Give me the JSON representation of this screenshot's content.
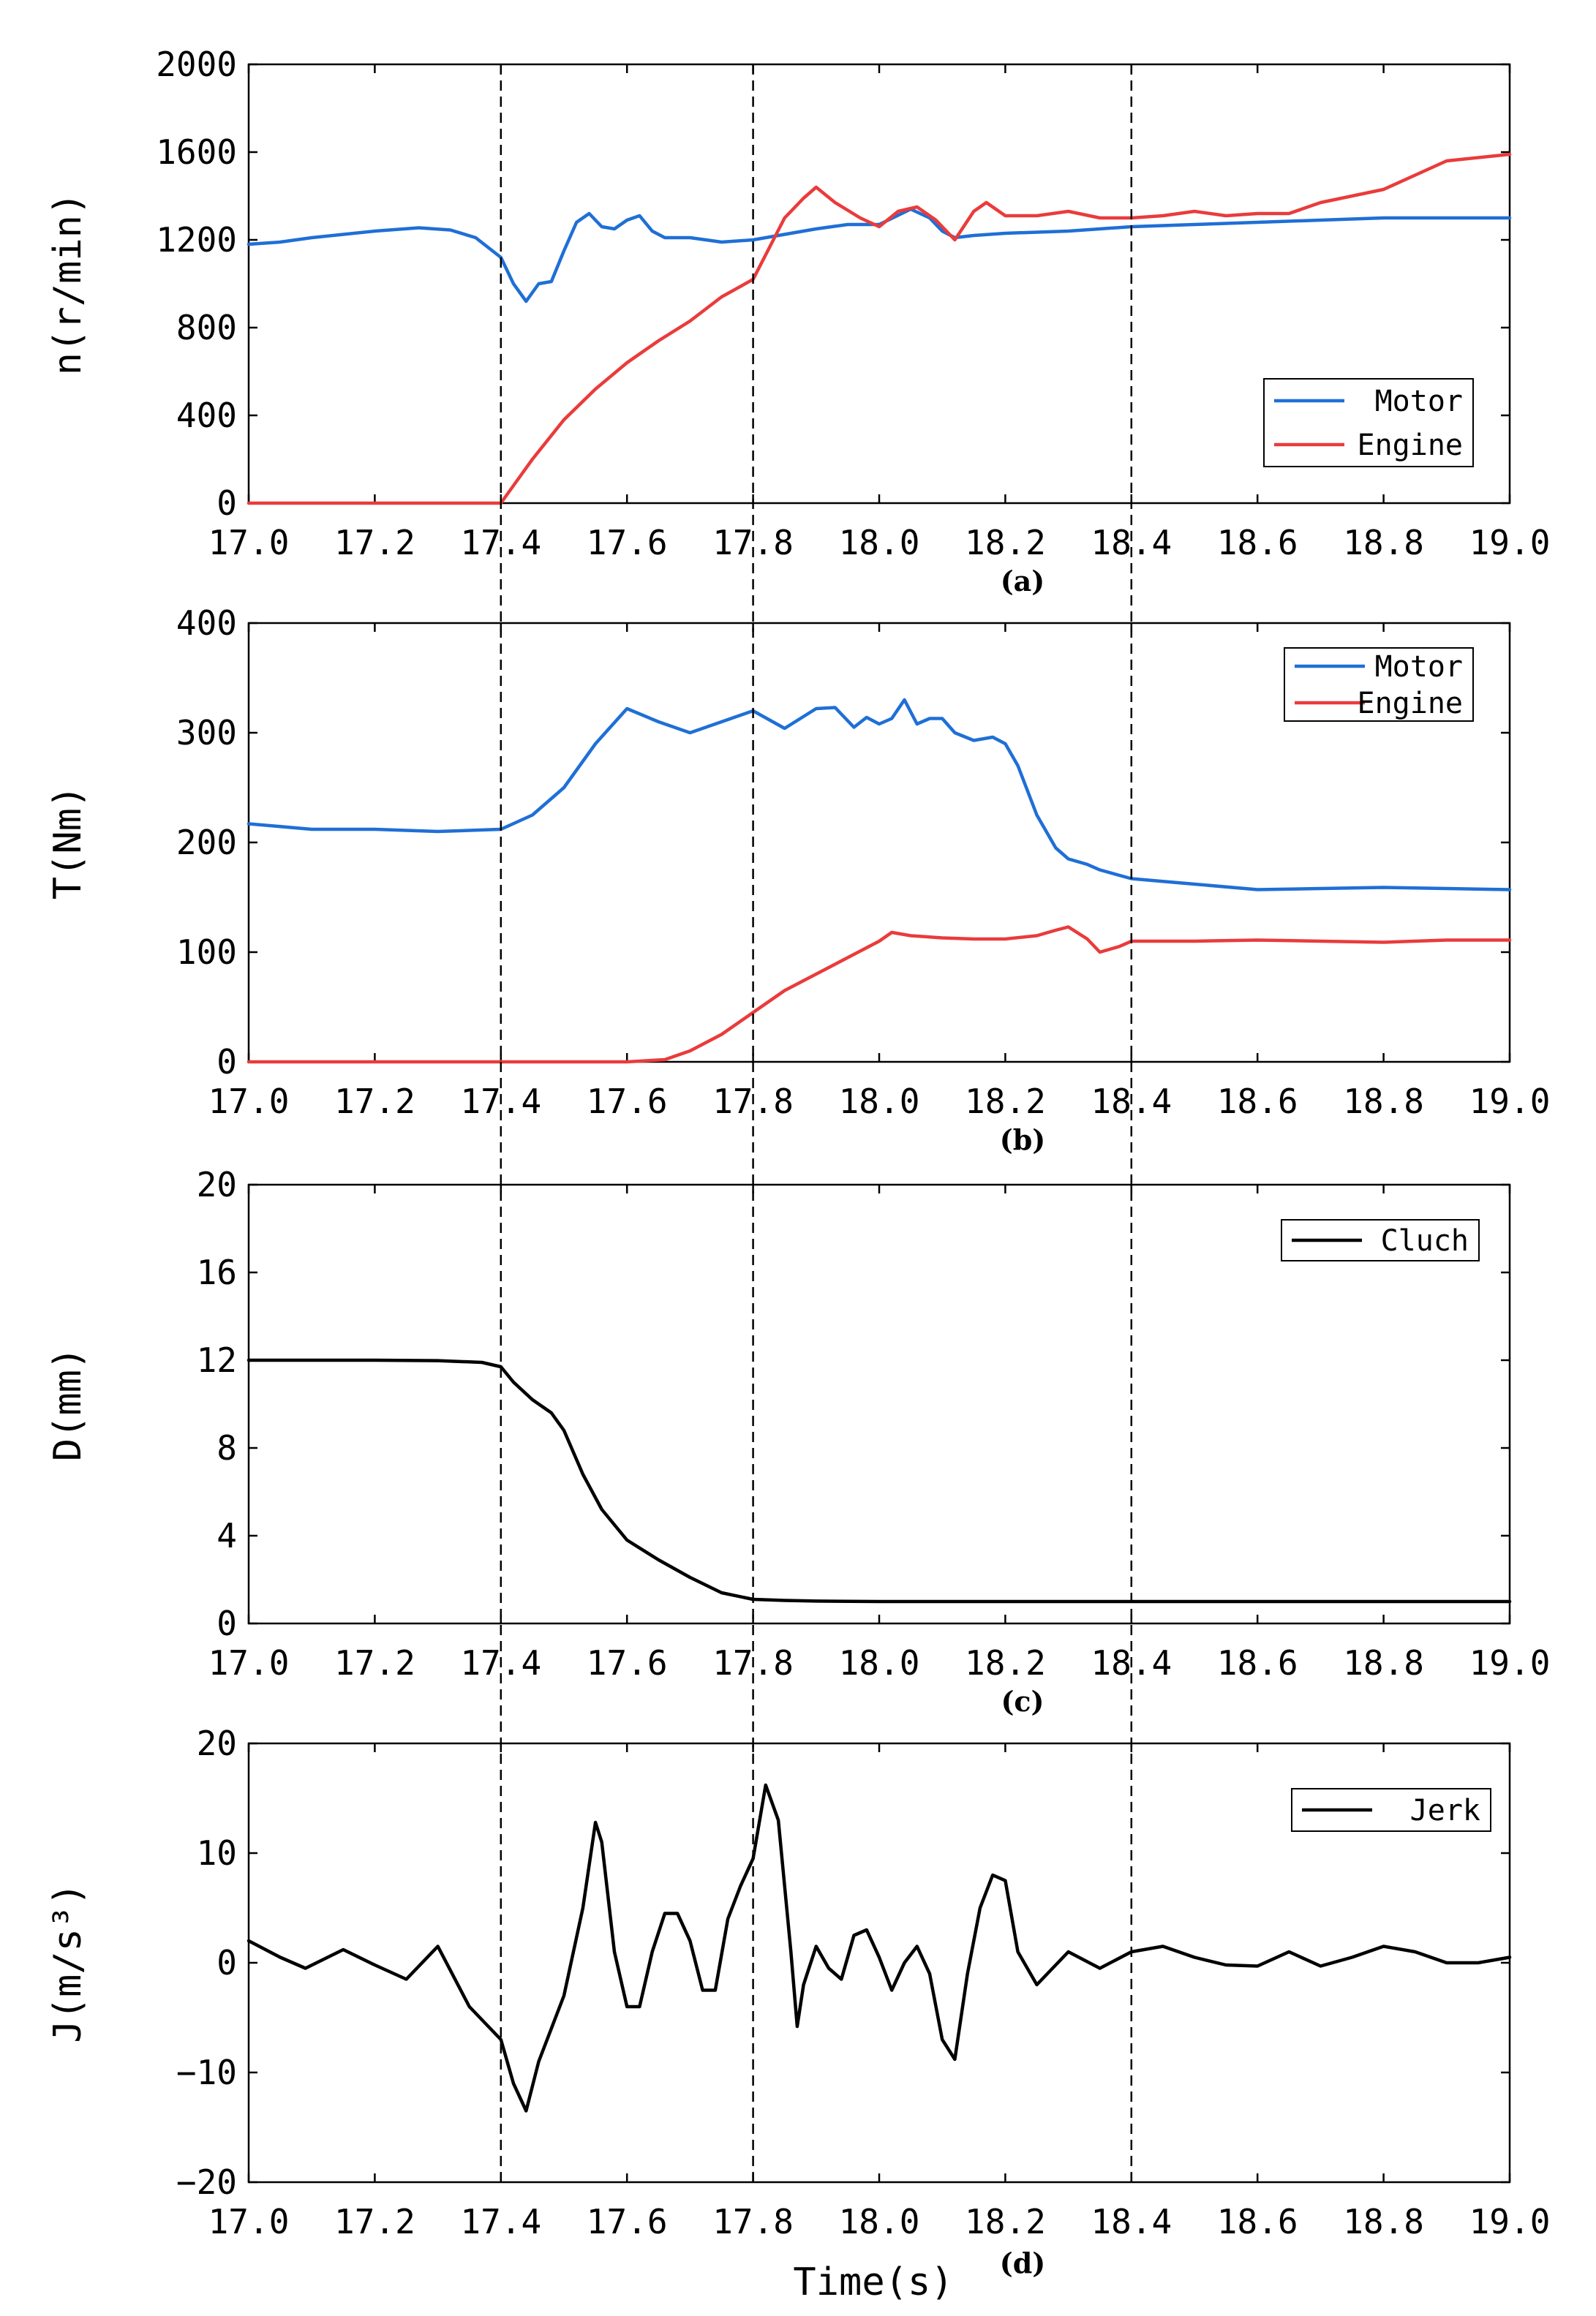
{
  "figure": {
    "x_label": "Time(s)"
  },
  "colors": {
    "motor": "#1f6fd6",
    "engine": "#ea3b3b",
    "black": "#000000"
  },
  "markers": [
    17.4,
    17.8,
    18.4
  ],
  "chart_data": [
    {
      "id": "a",
      "type": "line",
      "sub_label": "(a)",
      "ylabel": "n(r/min)",
      "xlim": [
        17.0,
        19.0
      ],
      "ylim": [
        0,
        2000
      ],
      "xticks": [
        "17.0",
        "17.2",
        "17.4",
        "17.6",
        "17.8",
        "18.0",
        "18.2",
        "18.4",
        "18.6",
        "18.8",
        "19.0"
      ],
      "yticks": [
        "0",
        "400",
        "800",
        "1200",
        "1600",
        "2000"
      ],
      "legend": {
        "position": "bottom-right"
      },
      "series": [
        {
          "name": "Motor",
          "color": "#1f6fd6",
          "x": [
            17.0,
            17.05,
            17.1,
            17.2,
            17.27,
            17.32,
            17.36,
            17.4,
            17.42,
            17.44,
            17.46,
            17.48,
            17.5,
            17.52,
            17.54,
            17.56,
            17.58,
            17.6,
            17.62,
            17.64,
            17.66,
            17.7,
            17.75,
            17.8,
            17.9,
            17.95,
            18.0,
            18.05,
            18.08,
            18.1,
            18.12,
            18.15,
            18.2,
            18.3,
            18.4,
            18.5,
            18.6,
            18.7,
            18.8,
            18.9,
            19.0
          ],
          "y": [
            1180,
            1190,
            1210,
            1240,
            1255,
            1245,
            1210,
            1120,
            1000,
            920,
            1000,
            1010,
            1150,
            1280,
            1320,
            1260,
            1250,
            1290,
            1310,
            1240,
            1210,
            1210,
            1190,
            1200,
            1250,
            1270,
            1270,
            1340,
            1300,
            1240,
            1210,
            1220,
            1230,
            1240,
            1260,
            1270,
            1280,
            1290,
            1300,
            1300,
            1300
          ]
        },
        {
          "name": "Engine",
          "color": "#ea3b3b",
          "x": [
            17.0,
            17.2,
            17.4,
            17.42,
            17.45,
            17.5,
            17.55,
            17.6,
            17.65,
            17.7,
            17.75,
            17.8,
            17.85,
            17.88,
            17.9,
            17.93,
            17.97,
            18.0,
            18.03,
            18.06,
            18.09,
            18.12,
            18.15,
            18.17,
            18.2,
            18.25,
            18.3,
            18.35,
            18.4,
            18.45,
            18.5,
            18.55,
            18.6,
            18.65,
            18.7,
            18.8,
            18.9,
            19.0
          ],
          "y": [
            0,
            0,
            0,
            80,
            200,
            380,
            520,
            640,
            740,
            830,
            940,
            1020,
            1300,
            1390,
            1440,
            1370,
            1300,
            1260,
            1330,
            1350,
            1290,
            1200,
            1330,
            1370,
            1310,
            1310,
            1330,
            1300,
            1300,
            1310,
            1330,
            1310,
            1320,
            1320,
            1370,
            1430,
            1560,
            1590
          ]
        }
      ]
    },
    {
      "id": "b",
      "type": "line",
      "sub_label": "(b)",
      "ylabel": "T(Nm)",
      "xlim": [
        17.0,
        19.0
      ],
      "ylim": [
        0,
        400
      ],
      "xticks": [
        "17.0",
        "17.2",
        "17.4",
        "17.6",
        "17.8",
        "18.0",
        "18.2",
        "18.4",
        "18.6",
        "18.8",
        "19.0"
      ],
      "yticks": [
        "0",
        "100",
        "200",
        "300",
        "400"
      ],
      "legend": {
        "position": "top-right"
      },
      "series": [
        {
          "name": "Motor",
          "color": "#1f6fd6",
          "x": [
            17.0,
            17.1,
            17.2,
            17.3,
            17.4,
            17.45,
            17.5,
            17.55,
            17.6,
            17.65,
            17.7,
            17.75,
            17.8,
            17.85,
            17.9,
            17.93,
            17.96,
            17.98,
            18.0,
            18.02,
            18.04,
            18.06,
            18.08,
            18.1,
            18.12,
            18.15,
            18.18,
            18.2,
            18.22,
            18.25,
            18.28,
            18.3,
            18.33,
            18.35,
            18.4,
            18.5,
            18.6,
            18.7,
            18.8,
            18.9,
            19.0
          ],
          "y": [
            217,
            212,
            212,
            210,
            212,
            225,
            250,
            290,
            322,
            310,
            300,
            310,
            320,
            304,
            322,
            323,
            305,
            314,
            308,
            313,
            330,
            308,
            313,
            313,
            300,
            293,
            296,
            290,
            270,
            225,
            195,
            185,
            180,
            175,
            167,
            162,
            157,
            158,
            159,
            158,
            157
          ]
        },
        {
          "name": "Engine",
          "color": "#ea3b3b",
          "x": [
            17.0,
            17.2,
            17.4,
            17.6,
            17.66,
            17.7,
            17.75,
            17.8,
            17.85,
            17.9,
            17.95,
            18.0,
            18.02,
            18.05,
            18.1,
            18.15,
            18.2,
            18.25,
            18.28,
            18.3,
            18.33,
            18.35,
            18.38,
            18.4,
            18.5,
            18.6,
            18.7,
            18.8,
            18.9,
            19.0
          ],
          "y": [
            0,
            0,
            0,
            0,
            2,
            10,
            25,
            45,
            65,
            80,
            95,
            110,
            118,
            115,
            113,
            112,
            112,
            115,
            120,
            123,
            112,
            100,
            105,
            110,
            110,
            111,
            110,
            109,
            111,
            111
          ]
        }
      ]
    },
    {
      "id": "c",
      "type": "line",
      "sub_label": "(c)",
      "ylabel": "D(mm)",
      "xlim": [
        17.0,
        19.0
      ],
      "ylim": [
        0,
        20
      ],
      "xticks": [
        "17.0",
        "17.2",
        "17.4",
        "17.6",
        "17.8",
        "18.0",
        "18.2",
        "18.4",
        "18.6",
        "18.8",
        "19.0"
      ],
      "yticks": [
        "0",
        "4",
        "8",
        "12",
        "16",
        "20"
      ],
      "legend": {
        "position": "top-right"
      },
      "series": [
        {
          "name": "Cluch",
          "color": "#000000",
          "x": [
            17.0,
            17.2,
            17.3,
            17.37,
            17.4,
            17.42,
            17.45,
            17.48,
            17.5,
            17.53,
            17.56,
            17.6,
            17.65,
            17.7,
            17.75,
            17.8,
            17.85,
            17.9,
            18.0,
            18.2,
            18.4,
            18.6,
            18.8,
            19.0
          ],
          "y": [
            12,
            12,
            11.98,
            11.9,
            11.7,
            11.0,
            10.2,
            9.6,
            8.8,
            6.8,
            5.2,
            3.8,
            2.9,
            2.1,
            1.4,
            1.1,
            1.05,
            1.02,
            1.0,
            1.0,
            1.0,
            1.0,
            1.0,
            1.0
          ]
        }
      ]
    },
    {
      "id": "d",
      "type": "line",
      "sub_label": "(d)",
      "ylabel": "J(m/s³)",
      "xlim": [
        17.0,
        19.0
      ],
      "ylim": [
        -20,
        20
      ],
      "xticks": [
        "17.0",
        "17.2",
        "17.4",
        "17.6",
        "17.8",
        "18.0",
        "18.2",
        "18.4",
        "18.6",
        "18.8",
        "19.0"
      ],
      "yticks": [
        "−20",
        "−10",
        "0",
        "10",
        "20"
      ],
      "legend": {
        "position": "top-right"
      },
      "series": [
        {
          "name": "Jerk",
          "color": "#000000",
          "x": [
            17.0,
            17.05,
            17.09,
            17.15,
            17.2,
            17.25,
            17.3,
            17.35,
            17.4,
            17.42,
            17.44,
            17.46,
            17.5,
            17.53,
            17.55,
            17.56,
            17.58,
            17.6,
            17.62,
            17.64,
            17.66,
            17.68,
            17.7,
            17.72,
            17.74,
            17.76,
            17.78,
            17.8,
            17.82,
            17.84,
            17.86,
            17.87,
            17.88,
            17.9,
            17.92,
            17.94,
            17.96,
            17.98,
            18.0,
            18.02,
            18.04,
            18.06,
            18.08,
            18.1,
            18.12,
            18.14,
            18.16,
            18.18,
            18.2,
            18.22,
            18.25,
            18.3,
            18.35,
            18.4,
            18.45,
            18.5,
            18.55,
            18.6,
            18.65,
            18.7,
            18.75,
            18.8,
            18.85,
            18.9,
            18.95,
            19.0
          ],
          "y": [
            2,
            0.5,
            -0.5,
            1.2,
            -0.2,
            -1.5,
            1.5,
            -4,
            -7,
            -11,
            -13.5,
            -9,
            -3,
            5,
            12.8,
            11,
            1,
            -4,
            -4,
            1,
            4.5,
            4.5,
            2,
            -2.5,
            -2.5,
            4,
            7,
            9.5,
            16.2,
            13,
            1,
            -5.8,
            -2,
            1.5,
            -0.5,
            -1.5,
            2.5,
            3,
            0.5,
            -2.5,
            0,
            1.5,
            -1,
            -7,
            -8.8,
            -1,
            5,
            8,
            7.5,
            1,
            -2,
            1,
            -0.5,
            1,
            1.5,
            0.5,
            -0.2,
            -0.3,
            1,
            -0.3,
            0.5,
            1.5,
            1,
            0,
            0,
            0.5
          ]
        }
      ]
    }
  ]
}
